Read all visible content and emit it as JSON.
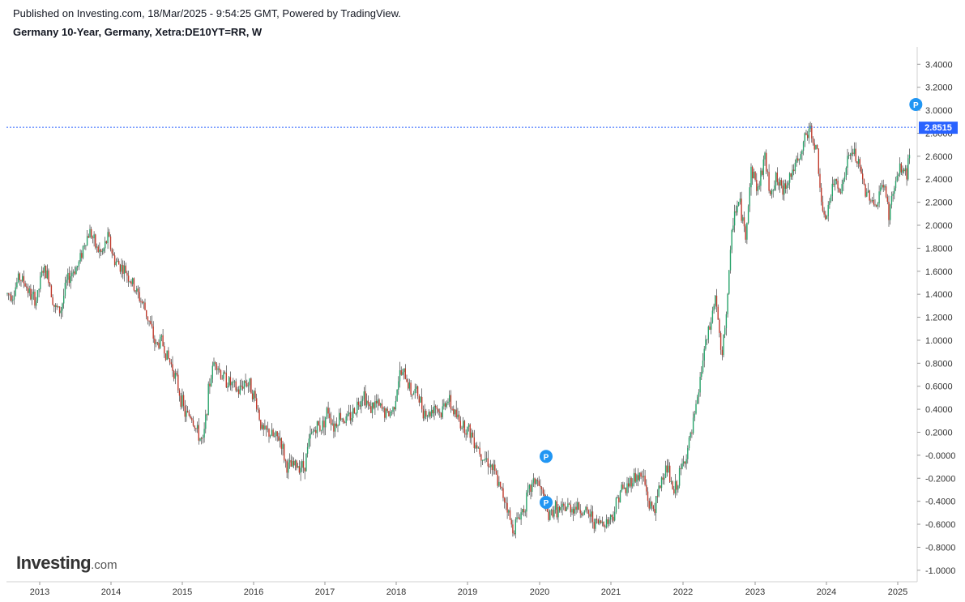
{
  "header": {
    "published": "Published on Investing.com, 18/Mar/2025 - 9:54:25 GMT, Powered by TradingView.",
    "instrument": "Germany 10-Year, Germany, Xetra:DE10YT=RR, W"
  },
  "branding": {
    "logo_word": "Investing",
    "logo_suffix": ".com"
  },
  "colors": {
    "up": "#26a269",
    "down": "#c0392b",
    "price_line": "#2962ff",
    "price_label_bg": "#2962ff",
    "marker": "#2196f3"
  },
  "price_label": "2.8515",
  "marker_label": "P",
  "chart_data": {
    "type": "candlestick",
    "interval": "W",
    "ylim": [
      -1.1,
      3.55
    ],
    "price_line_value": 2.8515,
    "y_ticks": [
      "3.4000",
      "3.2000",
      "3.0000",
      "2.8000",
      "2.6000",
      "2.4000",
      "2.2000",
      "2.0000",
      "1.8000",
      "1.6000",
      "1.4000",
      "1.2000",
      "1.0000",
      "0.8000",
      "0.6000",
      "0.4000",
      "0.2000",
      "-0.0000",
      "-0.2000",
      "-0.4000",
      "-0.6000",
      "-0.8000",
      "-1.0000"
    ],
    "x_ticks": [
      "2013",
      "2014",
      "2015",
      "2016",
      "2017",
      "2018",
      "2019",
      "2020",
      "2021",
      "2022",
      "2023",
      "2024",
      "2025"
    ],
    "markers": [
      {
        "label": "P",
        "date": "2020-02",
        "value": -0.01
      },
      {
        "label": "P",
        "date": "2020-02",
        "value": -0.41
      },
      {
        "label": "P",
        "date": "2025-03",
        "value": 3.05
      }
    ],
    "series": [
      {
        "name": "",
        "approx_monthly_closes": [
          [
            "2012-08",
            1.4
          ],
          [
            "2012-09",
            1.55
          ],
          [
            "2012-10",
            1.5
          ],
          [
            "2012-11",
            1.38
          ],
          [
            "2012-12",
            1.35
          ],
          [
            "2013-01",
            1.62
          ],
          [
            "2013-02",
            1.55
          ],
          [
            "2013-03",
            1.28
          ],
          [
            "2013-04",
            1.25
          ],
          [
            "2013-05",
            1.5
          ],
          [
            "2013-06",
            1.6
          ],
          [
            "2013-07",
            1.65
          ],
          [
            "2013-08",
            1.85
          ],
          [
            "2013-09",
            1.95
          ],
          [
            "2013-10",
            1.8
          ],
          [
            "2013-11",
            1.75
          ],
          [
            "2013-12",
            1.9
          ],
          [
            "2014-01",
            1.7
          ],
          [
            "2014-02",
            1.65
          ],
          [
            "2014-03",
            1.6
          ],
          [
            "2014-04",
            1.5
          ],
          [
            "2014-05",
            1.4
          ],
          [
            "2014-06",
            1.3
          ],
          [
            "2014-07",
            1.15
          ],
          [
            "2014-08",
            0.95
          ],
          [
            "2014-09",
            1.0
          ],
          [
            "2014-10",
            0.85
          ],
          [
            "2014-11",
            0.75
          ],
          [
            "2014-12",
            0.55
          ],
          [
            "2015-01",
            0.35
          ],
          [
            "2015-02",
            0.35
          ],
          [
            "2015-03",
            0.2
          ],
          [
            "2015-04",
            0.1
          ],
          [
            "2015-05",
            0.6
          ],
          [
            "2015-06",
            0.85
          ],
          [
            "2015-07",
            0.7
          ],
          [
            "2015-08",
            0.65
          ],
          [
            "2015-09",
            0.6
          ],
          [
            "2015-10",
            0.55
          ],
          [
            "2015-11",
            0.65
          ],
          [
            "2015-12",
            0.6
          ],
          [
            "2016-01",
            0.45
          ],
          [
            "2016-02",
            0.2
          ],
          [
            "2016-03",
            0.2
          ],
          [
            "2016-04",
            0.15
          ],
          [
            "2016-05",
            0.15
          ],
          [
            "2016-06",
            -0.1
          ],
          [
            "2016-07",
            -0.1
          ],
          [
            "2016-08",
            -0.08
          ],
          [
            "2016-09",
            -0.1
          ],
          [
            "2016-10",
            0.15
          ],
          [
            "2016-11",
            0.25
          ],
          [
            "2016-12",
            0.25
          ],
          [
            "2017-01",
            0.4
          ],
          [
            "2017-02",
            0.25
          ],
          [
            "2017-03",
            0.35
          ],
          [
            "2017-04",
            0.3
          ],
          [
            "2017-05",
            0.35
          ],
          [
            "2017-06",
            0.45
          ],
          [
            "2017-07",
            0.55
          ],
          [
            "2017-08",
            0.4
          ],
          [
            "2017-09",
            0.45
          ],
          [
            "2017-10",
            0.4
          ],
          [
            "2017-11",
            0.35
          ],
          [
            "2017-12",
            0.4
          ],
          [
            "2018-01",
            0.7
          ],
          [
            "2018-02",
            0.7
          ],
          [
            "2018-03",
            0.55
          ],
          [
            "2018-04",
            0.55
          ],
          [
            "2018-05",
            0.4
          ],
          [
            "2018-06",
            0.35
          ],
          [
            "2018-07",
            0.45
          ],
          [
            "2018-08",
            0.35
          ],
          [
            "2018-09",
            0.5
          ],
          [
            "2018-10",
            0.4
          ],
          [
            "2018-11",
            0.3
          ],
          [
            "2018-12",
            0.25
          ],
          [
            "2019-01",
            0.2
          ],
          [
            "2019-02",
            0.1
          ],
          [
            "2019-03",
            0.0
          ],
          [
            "2019-04",
            -0.05
          ],
          [
            "2019-05",
            -0.15
          ],
          [
            "2019-06",
            -0.3
          ],
          [
            "2019-07",
            -0.4
          ],
          [
            "2019-08",
            -0.65
          ],
          [
            "2019-09",
            -0.55
          ],
          [
            "2019-10",
            -0.45
          ],
          [
            "2019-11",
            -0.3
          ],
          [
            "2019-12",
            -0.2
          ],
          [
            "2020-01",
            -0.35
          ],
          [
            "2020-02",
            -0.55
          ],
          [
            "2020-03",
            -0.45
          ],
          [
            "2020-04",
            -0.5
          ],
          [
            "2020-05",
            -0.45
          ],
          [
            "2020-06",
            -0.45
          ],
          [
            "2020-07",
            -0.45
          ],
          [
            "2020-08",
            -0.5
          ],
          [
            "2020-09",
            -0.52
          ],
          [
            "2020-10",
            -0.6
          ],
          [
            "2020-11",
            -0.58
          ],
          [
            "2020-12",
            -0.57
          ],
          [
            "2021-01",
            -0.5
          ],
          [
            "2021-02",
            -0.3
          ],
          [
            "2021-03",
            -0.3
          ],
          [
            "2021-04",
            -0.2
          ],
          [
            "2021-05",
            -0.18
          ],
          [
            "2021-06",
            -0.2
          ],
          [
            "2021-07",
            -0.45
          ],
          [
            "2021-08",
            -0.45
          ],
          [
            "2021-09",
            -0.2
          ],
          [
            "2021-10",
            -0.1
          ],
          [
            "2021-11",
            -0.35
          ],
          [
            "2021-12",
            -0.18
          ],
          [
            "2022-01",
            0.0
          ],
          [
            "2022-02",
            0.2
          ],
          [
            "2022-03",
            0.5
          ],
          [
            "2022-04",
            0.9
          ],
          [
            "2022-05",
            1.1
          ],
          [
            "2022-06",
            1.4
          ],
          [
            "2022-07",
            0.8
          ],
          [
            "2022-08",
            1.4
          ],
          [
            "2022-09",
            2.1
          ],
          [
            "2022-10",
            2.2
          ],
          [
            "2022-11",
            1.9
          ],
          [
            "2022-12",
            2.5
          ],
          [
            "2023-01",
            2.3
          ],
          [
            "2023-02",
            2.6
          ],
          [
            "2023-03",
            2.3
          ],
          [
            "2023-04",
            2.4
          ],
          [
            "2023-05",
            2.3
          ],
          [
            "2023-06",
            2.4
          ],
          [
            "2023-07",
            2.5
          ],
          [
            "2023-08",
            2.55
          ],
          [
            "2023-09",
            2.8
          ],
          [
            "2023-10",
            2.8
          ],
          [
            "2023-11",
            2.6
          ],
          [
            "2023-12",
            2.0
          ],
          [
            "2024-01",
            2.2
          ],
          [
            "2024-02",
            2.4
          ],
          [
            "2024-03",
            2.3
          ],
          [
            "2024-04",
            2.55
          ],
          [
            "2024-05",
            2.65
          ],
          [
            "2024-06",
            2.5
          ],
          [
            "2024-07",
            2.3
          ],
          [
            "2024-08",
            2.25
          ],
          [
            "2024-09",
            2.15
          ],
          [
            "2024-10",
            2.4
          ],
          [
            "2024-11",
            2.1
          ],
          [
            "2024-12",
            2.35
          ],
          [
            "2025-01",
            2.5
          ],
          [
            "2025-02",
            2.45
          ],
          [
            "2025-03",
            2.85
          ]
        ]
      }
    ]
  }
}
